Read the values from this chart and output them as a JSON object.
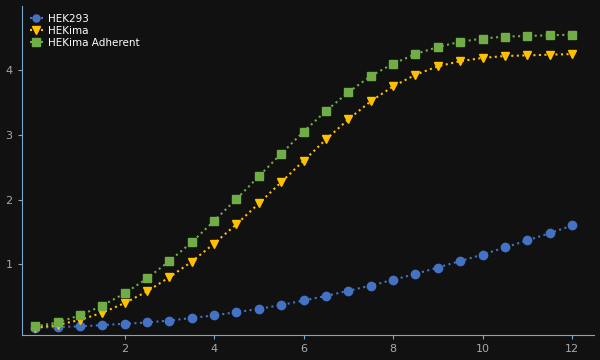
{
  "title": "",
  "background_color": "#111111",
  "axes_color": "#7aa7cc",
  "plot_bg": "#111111",
  "series": [
    {
      "label": "HEK293",
      "color": "#4472c4",
      "marker": "o",
      "y": [
        0.02,
        0.03,
        0.04,
        0.06,
        0.08,
        0.1,
        0.13,
        0.17,
        0.21,
        0.26,
        0.31,
        0.37,
        0.44,
        0.51,
        0.59,
        0.67,
        0.76,
        0.85,
        0.95,
        1.05,
        1.15,
        1.26,
        1.37,
        1.48,
        1.6
      ]
    },
    {
      "label": "HEKima",
      "color": "#ffc000",
      "marker": "v",
      "y": [
        0.02,
        0.06,
        0.14,
        0.25,
        0.4,
        0.58,
        0.8,
        1.04,
        1.32,
        1.62,
        1.94,
        2.27,
        2.6,
        2.93,
        3.24,
        3.52,
        3.75,
        3.93,
        4.06,
        4.14,
        4.19,
        4.22,
        4.23,
        4.24,
        4.25
      ]
    },
    {
      "label": "HEKima Adherent",
      "color": "#70ad47",
      "marker": "s",
      "y": [
        0.04,
        0.1,
        0.21,
        0.36,
        0.55,
        0.78,
        1.05,
        1.34,
        1.67,
        2.01,
        2.36,
        2.71,
        3.05,
        3.37,
        3.66,
        3.91,
        4.1,
        4.25,
        4.36,
        4.44,
        4.49,
        4.52,
        4.53,
        4.54,
        4.55
      ]
    }
  ],
  "x": [
    0,
    0.5,
    1,
    1.5,
    2,
    2.5,
    3,
    3.5,
    4,
    4.5,
    5,
    5.5,
    6,
    6.5,
    7,
    7.5,
    8,
    8.5,
    9,
    9.5,
    10,
    10.5,
    11,
    11.5,
    12
  ],
  "xticks": [
    2,
    4,
    6,
    8,
    10,
    12
  ],
  "xlim": [
    -0.3,
    12.5
  ],
  "ylim": [
    -0.1,
    5.0
  ],
  "yticks": [
    1,
    2,
    3,
    4
  ],
  "tick_label_color": "#aaaaaa",
  "tick_color": "#7aa7cc",
  "grid": false,
  "legend_pos": "upper left",
  "marker_size": 6,
  "linewidth": 1.5,
  "legend_fontsize": 7.5
}
